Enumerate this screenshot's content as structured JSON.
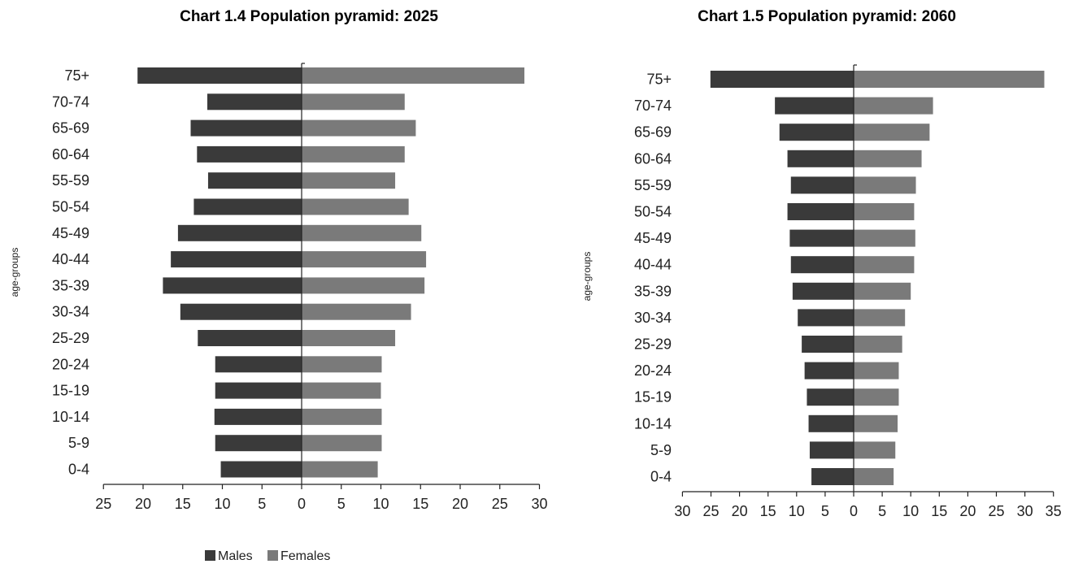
{
  "colors": {
    "males": "#3a3a3a",
    "females": "#7a7a7a",
    "axis": "#222222"
  },
  "legend": {
    "males_label": "Males",
    "females_label": "Females"
  },
  "chart_data": [
    {
      "type": "bar",
      "orientation": "horizontal",
      "title": "Chart 1.4 Population pyramid: 2025",
      "ylabel": "age-groups",
      "xlabel": "",
      "categories": [
        "75+",
        "70-74",
        "65-69",
        "60-64",
        "55-59",
        "50-54",
        "45-49",
        "40-44",
        "35-39",
        "30-34",
        "25-29",
        "20-24",
        "15-19",
        "10-14",
        "5-9",
        "0-4"
      ],
      "series": [
        {
          "name": "Males",
          "values": [
            20.7,
            11.9,
            14,
            13.2,
            11.8,
            13.6,
            15.6,
            16.5,
            17.5,
            15.3,
            13.1,
            10.9,
            10.9,
            11,
            10.9,
            10.2
          ]
        },
        {
          "name": "Females",
          "values": [
            28.1,
            13,
            14.4,
            13,
            11.8,
            13.5,
            15.1,
            15.7,
            15.5,
            13.8,
            11.8,
            10.1,
            10,
            10.1,
            10.1,
            9.6
          ]
        }
      ],
      "xlim": [
        -25,
        30
      ],
      "xticks": [
        -25,
        -20,
        -15,
        -10,
        -5,
        0,
        5,
        10,
        15,
        20,
        25,
        30
      ],
      "xtick_labels": [
        "25",
        "20",
        "15",
        "10",
        "5",
        "0",
        "5",
        "10",
        "15",
        "20",
        "25",
        "30"
      ],
      "legend_position": "bottom"
    },
    {
      "type": "bar",
      "orientation": "horizontal",
      "title": "Chart 1.5 Population pyramid: 2060",
      "ylabel": "age-groups",
      "xlabel": "",
      "categories": [
        "75+",
        "70-74",
        "65-69",
        "60-64",
        "55-59",
        "50-54",
        "45-49",
        "40-44",
        "35-39",
        "30-34",
        "25-29",
        "20-24",
        "15-19",
        "10-14",
        "5-9",
        "0-4"
      ],
      "series": [
        {
          "name": "Males",
          "values": [
            25.1,
            13.8,
            13,
            11.6,
            11,
            11.6,
            11.2,
            11,
            10.7,
            9.8,
            9.1,
            8.6,
            8.2,
            7.9,
            7.7,
            7.4
          ]
        },
        {
          "name": "Females",
          "values": [
            33.4,
            13.9,
            13.3,
            11.9,
            10.9,
            10.6,
            10.8,
            10.6,
            10,
            9,
            8.5,
            7.9,
            7.9,
            7.7,
            7.3,
            7
          ]
        }
      ],
      "xlim": [
        -30,
        35
      ],
      "xticks": [
        -30,
        -25,
        -20,
        -15,
        -10,
        -5,
        0,
        5,
        10,
        15,
        20,
        25,
        30,
        35
      ],
      "xtick_labels": [
        "30",
        "25",
        "20",
        "15",
        "10",
        "5",
        "0",
        "5",
        "10",
        "15",
        "20",
        "25",
        "30",
        "35"
      ]
    }
  ]
}
